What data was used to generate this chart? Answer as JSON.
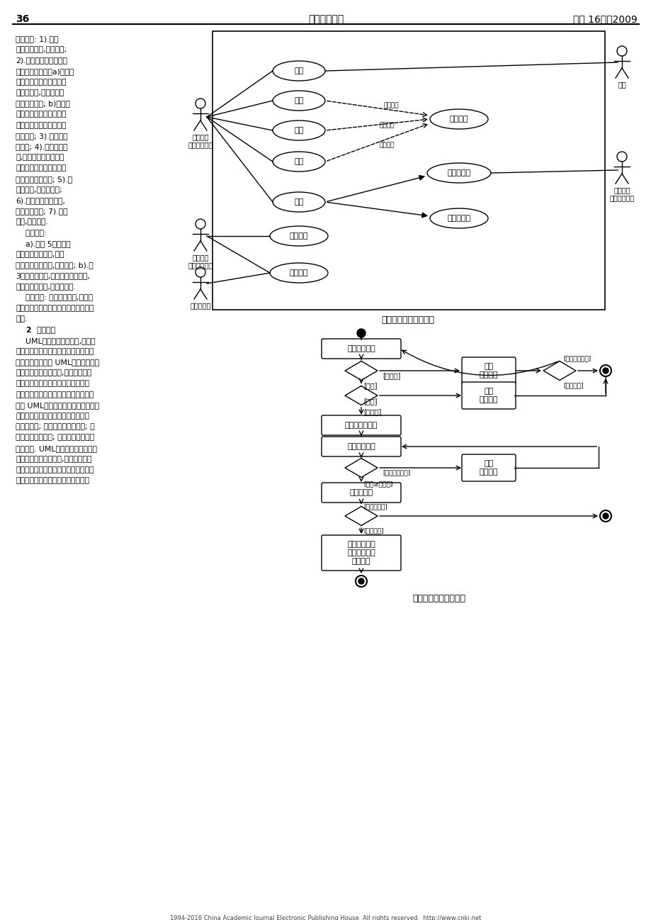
{
  "page_num": "36",
  "journal_name": "琼州学院学报",
  "volume_year": "（第 16卷）2009",
  "bg_color": "#ffffff",
  "uml_caption": "银行储蓄账户管理系统",
  "activity_caption": "描述取款用况的活动图",
  "bottom_text": "1994-2016 China Academic Journal Electronic Publishing House. All rights reserved.  http://www.cnki.net",
  "left_col_lines": [
    "基本路径: 1).当选",
    "择取款功能时,用说开始;",
    "2).当输入客户信息（姓",
    "名、账号等）后：a)如果客",
    "户信息与账户不一致，显",
    "示错误信息,可以重新输",
    "入或结束用况; b)如果该",
    "账户被冻结（如因挂失而",
    "冻结），显示冻结信息并",
    "结束用况; 3).输入并校",
    "验密码; 4).输入取款金",
    "额,如果该账户的余款小",
    "于取款金额，显示错误信",
    "息，要求重新输入; 5).打",
    "印取款单,交客户签字;",
    "6).建立取款事件记录,",
    "更新账户信息; 7).打印",
    "存折,用况结束.",
    "    可选路径:",
    "    a).在第 5步客户签",
    "字之前的任何时刻,客户",
    "可以取消本次取款,用况结束; b).第",
    "3步校验密码时,如发现密码不一致,",
    "则重新输入密码,或用况结束.",
    "    后置条件: 如果取款成功,客户账",
    "户中的余额被更新（减少），否则余额",
    "不变.",
    "    2  应用研究",
    "    UML作为一种建模语言,用于系",
    "统开发人员之间、开发人员与用户之间",
    "的交流，通过使用 UML可以在开始编",
    "码之前规划好整个系统,并且开发人员",
    "清楚自己所负责的模块在整个系统中",
    "所起的作用。当模型建立之后，模型可",
    "以被 UML工具转化成指定的程序语言",
    "代码其功能有为软件系统的产生建立",
    "可视化模型; 规约软件系统的产出; 构",
    "造软件系统的产出; 为软件系统的产出",
    "建立文档. UML的目标是以面向对象",
    "图的方式来描述系统的,具有很广的应",
    "用领域，其中最常用的是建立软件系统",
    "的模型，同样适用于描述非软件领域"
  ]
}
